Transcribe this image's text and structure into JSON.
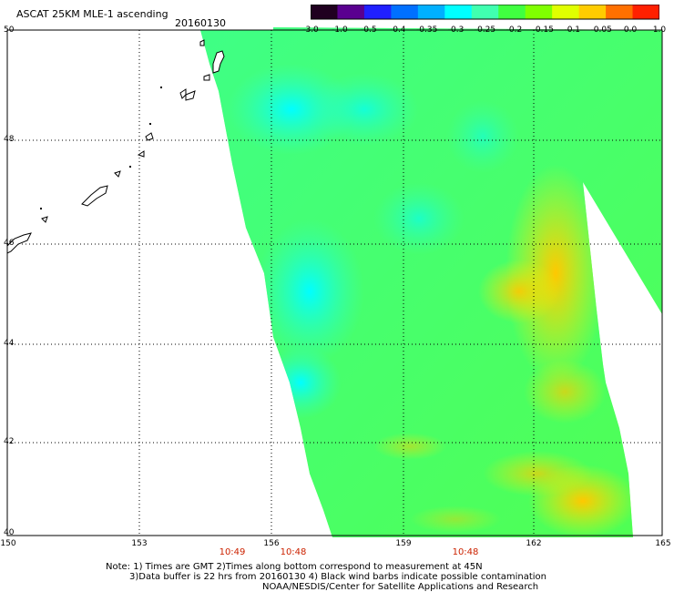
{
  "title": "ASCAT 25KM MLE-1 ascending",
  "date": "20160130",
  "colorbar": {
    "labels": [
      "-3.0",
      "-1.0",
      "-0.5",
      "-0.4",
      "-0.35",
      "-0.3",
      "-0.25",
      "-0.2",
      "-0.15",
      "-0.1",
      "-0.05",
      "0.0",
      "1.0"
    ],
    "colors": [
      "#200020",
      "#5a0090",
      "#2020ff",
      "#0070ff",
      "#00b0ff",
      "#00ffff",
      "#40ffb0",
      "#40ff40",
      "#80ff00",
      "#e0ff00",
      "#ffcc00",
      "#ff7000",
      "#ff2000"
    ]
  },
  "axes": {
    "lat_labels": [
      "50",
      "48",
      "46",
      "44",
      "42",
      "40"
    ],
    "lon_labels": [
      "150",
      "153",
      "156",
      "159",
      "162",
      "165"
    ]
  },
  "pass_times": [
    "10:49",
    "10:48",
    "10:48"
  ],
  "notes": {
    "line1": "Note: 1) Times are GMT 2)Times along bottom correspond to measurement at 45N",
    "line2": "3)Data buffer is 22 hrs from 20160130 4) Black wind barbs indicate possible contamination",
    "line3": "NOAA/NESDIS/Center for Satellite Applications and Research"
  },
  "colors": {
    "swath_main": "#60ff30",
    "swath_low": "#20ffd0",
    "swath_high": "#ffdd00",
    "time_text": "#cc2200"
  }
}
